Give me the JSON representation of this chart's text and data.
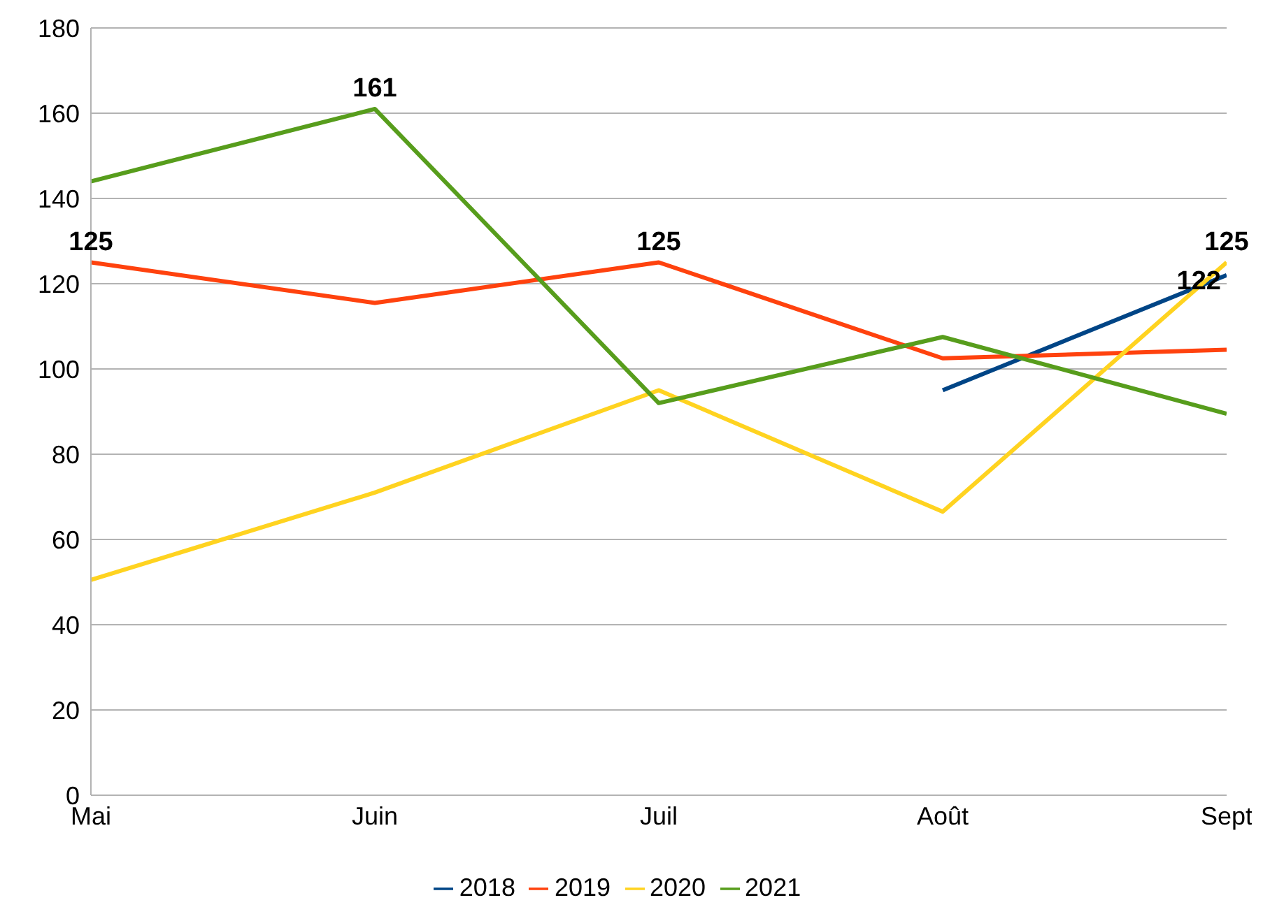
{
  "chart_data": {
    "type": "line",
    "categories": [
      "Mai",
      "Juin",
      "Juil",
      "Août",
      "Sept"
    ],
    "series": [
      {
        "name": "2018",
        "color": "#004586",
        "values": [
          null,
          null,
          null,
          95,
          122
        ],
        "value_labels": [
          null,
          null,
          null,
          null,
          "122"
        ]
      },
      {
        "name": "2019",
        "color": "#ff420e",
        "values": [
          125,
          115.5,
          125,
          102.5,
          104.5
        ],
        "value_labels": [
          "125",
          null,
          "125",
          null,
          null
        ]
      },
      {
        "name": "2020",
        "color": "#ffd320",
        "values": [
          50.5,
          71,
          95,
          66.5,
          125
        ],
        "value_labels": [
          null,
          null,
          null,
          null,
          "125"
        ]
      },
      {
        "name": "2021",
        "color": "#579d1c",
        "values": [
          144,
          161,
          92,
          107.5,
          89.5
        ],
        "value_labels": [
          null,
          "161",
          null,
          null,
          null
        ]
      }
    ],
    "ylim": [
      0,
      180
    ],
    "yticks": [
      0,
      20,
      40,
      60,
      80,
      100,
      120,
      140,
      160,
      180
    ],
    "grid": "y",
    "legend": "bottom",
    "marker": "none",
    "line_style": "solid"
  }
}
